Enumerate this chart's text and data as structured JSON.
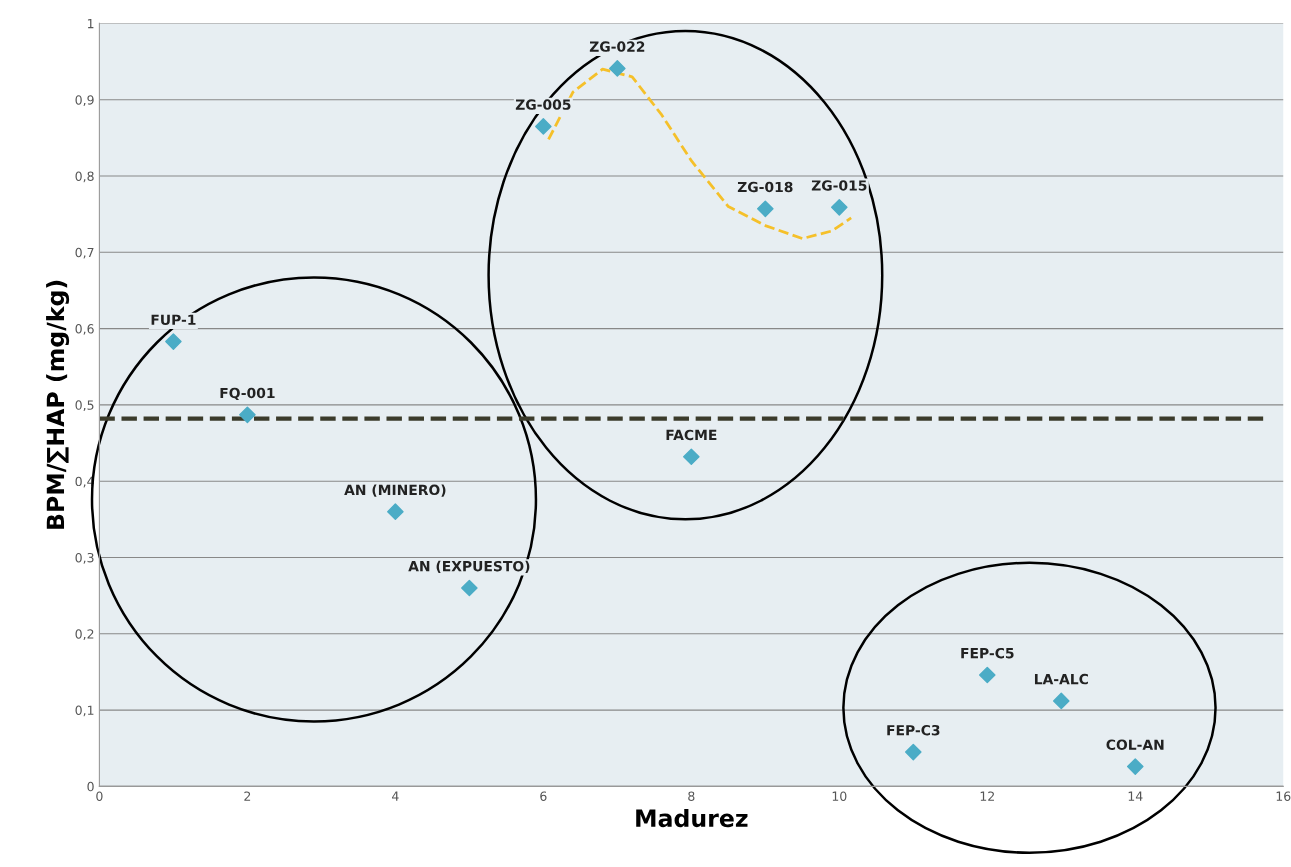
{
  "chart_data": {
    "type": "scatter",
    "xlabel": "Madurez",
    "ylabel": "BPM/∑HAP (mg/kg)",
    "xlim": [
      0,
      16
    ],
    "xticks": [
      0,
      2,
      4,
      6,
      8,
      10,
      12,
      14,
      16
    ],
    "ylim": [
      0,
      1
    ],
    "yticks": [
      0,
      {
        "value": 0.1,
        "label": "0,1"
      },
      {
        "value": 0.2,
        "label": "0,2"
      },
      {
        "value": 0.3,
        "label": "0,3"
      },
      {
        "value": 0.4,
        "label": "0,4"
      },
      {
        "value": 0.5,
        "label": "0,5"
      },
      {
        "value": 0.6,
        "label": "0,6"
      },
      {
        "value": 0.7,
        "label": "0,7"
      },
      {
        "value": 0.8,
        "label": "0,8"
      },
      {
        "value": 0.9,
        "label": "0,9"
      },
      1
    ],
    "grid": "y",
    "legend": false,
    "series": [
      {
        "color": "#4bacc6",
        "marker": "diamond",
        "x": [
          1,
          2,
          4,
          5,
          6,
          7,
          8,
          9,
          10,
          11,
          12,
          13,
          14
        ],
        "values": [
          0.583,
          0.487,
          0.36,
          0.26,
          0.865,
          0.941,
          0.432,
          0.757,
          0.759,
          0.045,
          0.146,
          0.112,
          0.026
        ]
      },
      {
        "type": "line",
        "color": "#f5c02a",
        "line_style": "dashed",
        "marker": "none",
        "x": [
          6.07,
          6.4,
          6.8,
          7.2,
          7.6,
          8.0,
          8.5,
          9.0,
          9.5,
          9.9,
          10.16
        ],
        "values": [
          0.848,
          0.91,
          0.94,
          0.93,
          0.88,
          0.82,
          0.76,
          0.735,
          0.718,
          0.728,
          0.745
        ]
      }
    ],
    "ref_lines": [
      {
        "axis": "y",
        "value": 0.482,
        "color": "#3b3b2b",
        "line_style": "dashed"
      }
    ],
    "annotations": [
      {
        "text": "FUP-1",
        "x": 1,
        "y": 0.583
      },
      {
        "text": "FQ-001",
        "x": 2,
        "y": 0.487
      },
      {
        "text": "AN (MINERO)",
        "x": 4,
        "y": 0.36
      },
      {
        "text": "AN (EXPUESTO)",
        "x": 5,
        "y": 0.26
      },
      {
        "text": "ZG-005",
        "x": 6,
        "y": 0.865
      },
      {
        "text": "ZG-022",
        "x": 7,
        "y": 0.941
      },
      {
        "text": "FACME",
        "x": 8,
        "y": 0.432
      },
      {
        "text": "ZG-018",
        "x": 9,
        "y": 0.757
      },
      {
        "text": "ZG-015",
        "x": 10,
        "y": 0.759
      },
      {
        "text": "FEP-C3",
        "x": 11,
        "y": 0.045
      },
      {
        "text": "FEP-C5",
        "x": 12,
        "y": 0.146
      },
      {
        "text": "LA-ALC",
        "x": 13,
        "y": 0.112
      },
      {
        "text": "COL-AN",
        "x": 14,
        "y": 0.026
      }
    ]
  }
}
